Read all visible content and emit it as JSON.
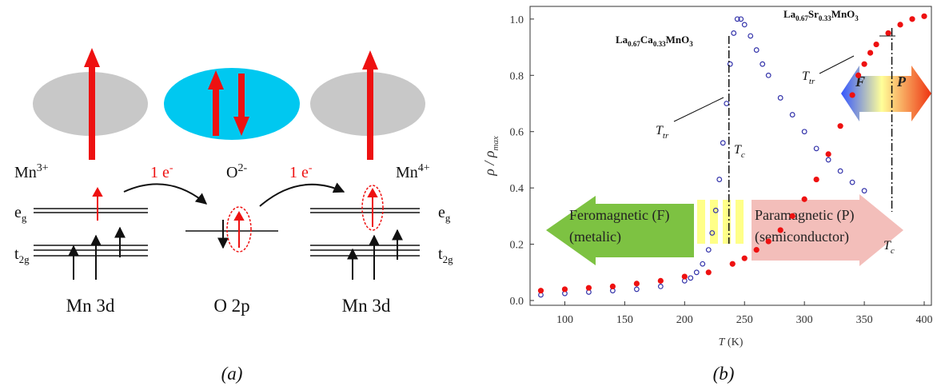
{
  "diagram": {
    "ions": [
      {
        "text": "Mn",
        "sup": "3+"
      },
      {
        "text": "O",
        "sup": "2-"
      },
      {
        "text": "Mn",
        "sup": "4+"
      }
    ],
    "transfers": [
      {
        "text": "1 e",
        "sup": "-"
      },
      {
        "text": "1 e",
        "sup": "-"
      }
    ],
    "levels": {
      "eg_left": {
        "text": "e",
        "sub": "g"
      },
      "t2g_left": {
        "text": "t",
        "sub": "2g"
      },
      "eg_right": {
        "text": "e",
        "sub": "g"
      },
      "t2g_right": {
        "text": "t",
        "sub": "2g"
      }
    },
    "orbitals": [
      "Mn 3d",
      "O 2p",
      "Mn 3d"
    ],
    "panel_label": "(a)"
  },
  "chart_data": {
    "type": "scatter",
    "panel_label": "(b)",
    "x_label": {
      "text": "T",
      "unit": " (K)"
    },
    "y_label": {
      "text": "ρ / ρ",
      "sub": "max"
    },
    "xlim": [
      71,
      406
    ],
    "ylim": [
      -0.017,
      1.045
    ],
    "xticks": [
      100,
      150,
      200,
      250,
      300,
      350,
      400
    ],
    "yticks": [
      {
        "value": 0,
        "label": "0.0"
      },
      0.2,
      0.4,
      0.6,
      0.8,
      {
        "value": 1,
        "label": "1.0"
      }
    ],
    "series": [
      {
        "name": "La0.67Ca0.33MnO3",
        "color": "#3333aa",
        "marker": "open",
        "x": [
          80,
          100,
          120,
          140,
          160,
          180,
          200,
          205,
          210,
          215,
          220,
          223,
          226,
          229,
          232,
          235,
          238,
          241,
          244,
          247,
          250,
          255,
          260,
          265,
          270,
          280,
          290,
          300,
          310,
          320,
          330,
          340,
          350
        ],
        "values": [
          0.02,
          0.025,
          0.03,
          0.035,
          0.04,
          0.05,
          0.07,
          0.08,
          0.1,
          0.13,
          0.18,
          0.24,
          0.32,
          0.43,
          0.56,
          0.7,
          0.84,
          0.95,
          1.0,
          1.0,
          0.98,
          0.94,
          0.89,
          0.84,
          0.8,
          0.72,
          0.66,
          0.6,
          0.54,
          0.5,
          0.46,
          0.42,
          0.39
        ]
      },
      {
        "name": "La0.67Sr0.33MnO3",
        "color": "#ee1111",
        "marker": "filled",
        "x": [
          80,
          100,
          120,
          140,
          160,
          180,
          200,
          220,
          240,
          250,
          260,
          270,
          280,
          290,
          300,
          310,
          320,
          330,
          340,
          345,
          350,
          355,
          360,
          370,
          380,
          390,
          400
        ],
        "values": [
          0.035,
          0.04,
          0.045,
          0.05,
          0.06,
          0.07,
          0.085,
          0.1,
          0.13,
          0.15,
          0.18,
          0.21,
          0.25,
          0.3,
          0.36,
          0.43,
          0.52,
          0.62,
          0.73,
          0.8,
          0.84,
          0.88,
          0.91,
          0.95,
          0.98,
          1.0,
          1.01
        ]
      }
    ],
    "transition_labels": [
      {
        "text": "T",
        "sub": "tr"
      },
      {
        "text": "T",
        "sub": "c"
      },
      {
        "text": "T",
        "sub": "tr"
      },
      {
        "text": "T",
        "sub": "c"
      }
    ],
    "tc_lines": [
      237,
      373
    ],
    "regions": {
      "ferro": [
        "Feromagnetic (F)",
        "(metalic)"
      ],
      "para": [
        "Paramagnetic (P)",
        "(semiconductor)"
      ],
      "gradient": [
        "F",
        "P"
      ]
    }
  }
}
